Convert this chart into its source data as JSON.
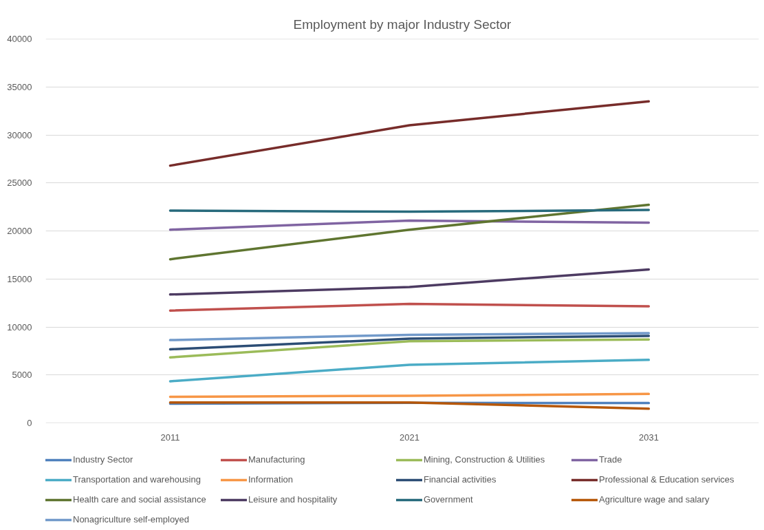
{
  "chart_data": {
    "type": "line",
    "title": "Employment by major Industry Sector",
    "categories": [
      "2011",
      "2021",
      "2031"
    ],
    "ylim": [
      0,
      40000
    ],
    "yticks": [
      0,
      5000,
      10000,
      15000,
      20000,
      25000,
      30000,
      35000,
      40000
    ],
    "grid": "y",
    "legend": "bottom",
    "series": [
      {
        "name": "Industry Sector",
        "color": "#4f81bd",
        "values": [
          2000,
          2100,
          2070
        ]
      },
      {
        "name": "Manufacturing",
        "color": "#c0504d",
        "values": [
          11700,
          12400,
          12150
        ]
      },
      {
        "name": "Mining, Construction & Utilities",
        "color": "#9bbb59",
        "values": [
          6830,
          8520,
          8700
        ]
      },
      {
        "name": "Trade",
        "color": "#8064a2",
        "values": [
          20130,
          21080,
          20860
        ]
      },
      {
        "name": "Transportation and warehousing",
        "color": "#4bacc6",
        "values": [
          4340,
          6060,
          6570
        ]
      },
      {
        "name": "Information",
        "color": "#f79646",
        "values": [
          2730,
          2840,
          3020
        ]
      },
      {
        "name": "Financial activities",
        "color": "#2c4d75",
        "values": [
          7670,
          8780,
          9070
        ]
      },
      {
        "name": "Professional & Education services",
        "color": "#772c2a",
        "values": [
          26800,
          31000,
          33500
        ]
      },
      {
        "name": "Health care and social assistance",
        "color": "#5f7530",
        "values": [
          17050,
          20130,
          22730
        ]
      },
      {
        "name": "Leisure and hospitality",
        "color": "#4d3b62",
        "values": [
          13380,
          14160,
          15990
        ]
      },
      {
        "name": "Government",
        "color": "#276a7c",
        "values": [
          22110,
          22000,
          22180
        ]
      },
      {
        "name": "Agriculture wage and salary",
        "color": "#b65708",
        "values": [
          2140,
          2140,
          1480
        ]
      },
      {
        "name": "Nonagriculture self-employed",
        "color": "#729aca",
        "values": [
          8630,
          9180,
          9360
        ]
      }
    ]
  }
}
